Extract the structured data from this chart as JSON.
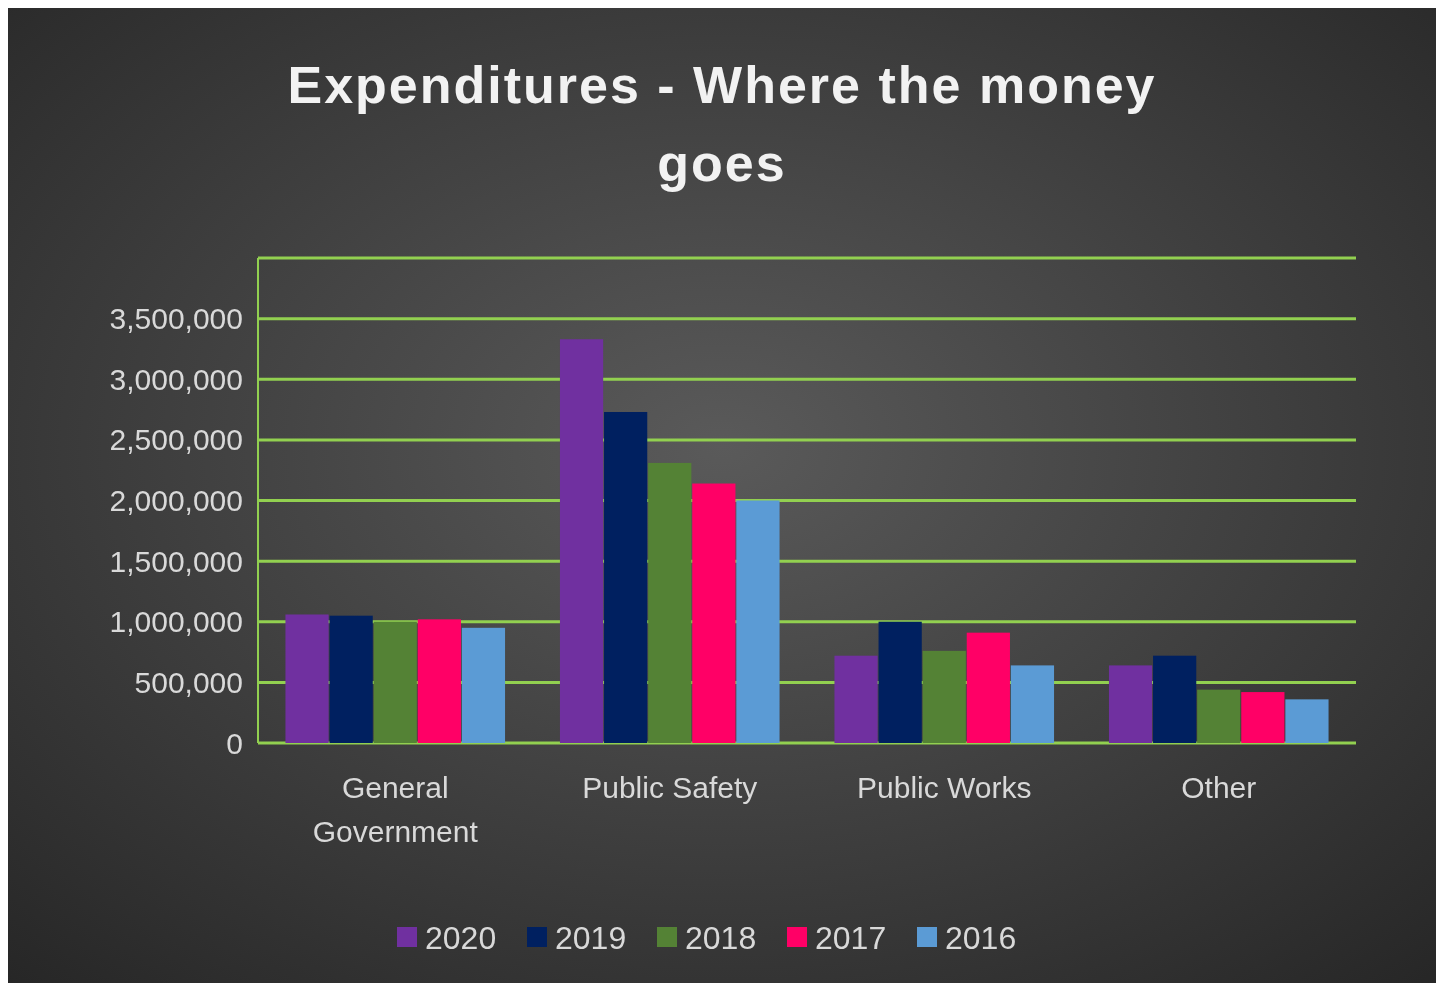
{
  "chart_data": {
    "type": "bar",
    "title": "Expenditures - Where the money goes",
    "categories": [
      "General Government",
      "Public Safety",
      "Public Works",
      "Other"
    ],
    "series": [
      {
        "name": "2020",
        "color": "#7030a0",
        "values": [
          1060000,
          3330000,
          720000,
          640000
        ]
      },
      {
        "name": "2019",
        "color": "#002060",
        "values": [
          1050000,
          2730000,
          1000000,
          720000
        ]
      },
      {
        "name": "2018",
        "color": "#548235",
        "values": [
          1000000,
          2310000,
          760000,
          440000
        ]
      },
      {
        "name": "2017",
        "color": "#ff0066",
        "values": [
          1020000,
          2140000,
          910000,
          420000
        ]
      },
      {
        "name": "2016",
        "color": "#5b9bd5",
        "values": [
          950000,
          2000000,
          640000,
          360000
        ]
      }
    ],
    "ylim": [
      0,
      4000000
    ],
    "yticks": [
      {
        "value": 0,
        "label": "0"
      },
      {
        "value": 500000,
        "label": "500,000"
      },
      {
        "value": 1000000,
        "label": "1,000,000"
      },
      {
        "value": 1500000,
        "label": "1,500,000"
      },
      {
        "value": 2000000,
        "label": "2,000,000"
      },
      {
        "value": 2500000,
        "label": "2,500,000"
      },
      {
        "value": 3000000,
        "label": "3,000,000"
      },
      {
        "value": 3500000,
        "label": "3,500,000"
      },
      {
        "value": 4000000,
        "label": null
      }
    ],
    "grid": "y",
    "legend": "bottom"
  }
}
